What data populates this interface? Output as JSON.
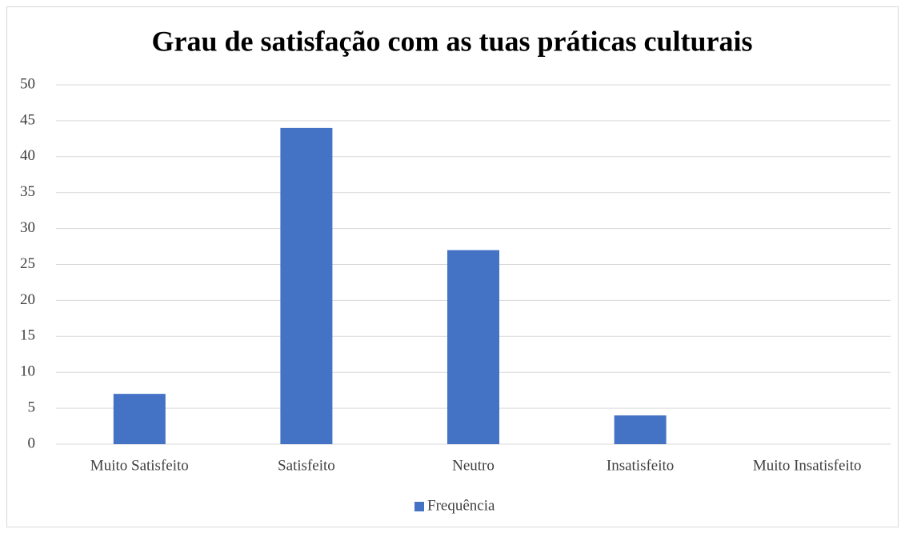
{
  "chart_data": {
    "type": "bar",
    "title": "Grau de satisfação com as tuas práticas culturais",
    "categories": [
      "Muito Satisfeito",
      "Satisfeito",
      "Neutro",
      "Insatisfeito",
      "Muito Insatisfeito"
    ],
    "series": [
      {
        "name": "Frequência",
        "color": "#4472c4",
        "values": [
          7,
          44,
          27,
          4,
          0
        ]
      }
    ],
    "ylim": [
      0,
      50
    ],
    "yticks": [
      0,
      5,
      10,
      15,
      20,
      25,
      30,
      35,
      40,
      45,
      50
    ],
    "grid": true,
    "legend": "bottom"
  }
}
